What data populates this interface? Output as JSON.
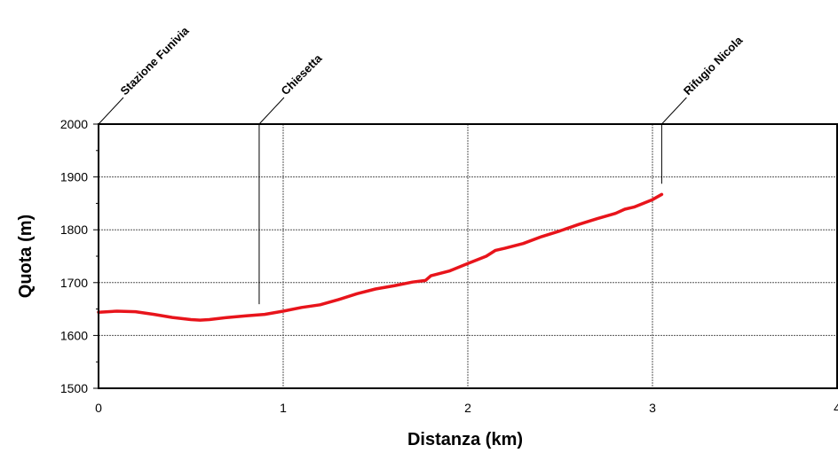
{
  "chart_data": {
    "type": "line",
    "xlabel": "Distanza (km)",
    "ylabel": "Quota (m)",
    "xlim": [
      0,
      4
    ],
    "ylim": [
      1500,
      2000
    ],
    "x_ticks": [
      "0",
      "1",
      "2",
      "3",
      "4"
    ],
    "y_ticks": [
      "1500",
      "1600",
      "1700",
      "1800",
      "1900",
      "2000"
    ],
    "grid": true,
    "series": [
      {
        "color": "#e8141b",
        "x": [
          0,
          0.1,
          0.2,
          0.3,
          0.4,
          0.5,
          0.55,
          0.6,
          0.7,
          0.8,
          0.9,
          1.0,
          1.1,
          1.2,
          1.3,
          1.4,
          1.5,
          1.6,
          1.7,
          1.77,
          1.8,
          1.9,
          2.0,
          2.1,
          2.15,
          2.2,
          2.3,
          2.4,
          2.5,
          2.6,
          2.7,
          2.8,
          2.85,
          2.9,
          3.0,
          3.05
        ],
        "y": [
          1644,
          1646,
          1645,
          1640,
          1634,
          1630,
          1629,
          1630,
          1634,
          1637,
          1640,
          1646,
          1653,
          1658,
          1668,
          1679,
          1688,
          1694,
          1701,
          1704,
          1713,
          1722,
          1736,
          1750,
          1761,
          1765,
          1774,
          1787,
          1798,
          1810,
          1821,
          1831,
          1839,
          1843,
          1857,
          1867
        ]
      }
    ],
    "annotations": [
      {
        "label": "Stazione Funivia",
        "x": 0
      },
      {
        "label": "Chiesetta",
        "x": 0.87
      },
      {
        "label": "Rifugio Nicola",
        "x": 3.05
      }
    ]
  }
}
